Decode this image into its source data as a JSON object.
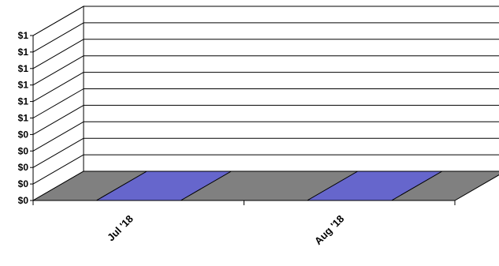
{
  "chart_data": {
    "type": "bar",
    "style": "3d",
    "categories": [
      "Jul '18",
      "Aug '18"
    ],
    "series": [
      {
        "values": [
          0,
          0
        ],
        "color": "#6666cc"
      }
    ],
    "y_tick_labels": [
      "$0",
      "$0",
      "$0",
      "$0",
      "$0",
      "$1",
      "$1",
      "$1",
      "$1",
      "$1",
      "$1"
    ],
    "ylim": [
      0,
      1
    ],
    "grid": true,
    "floor_color": "#808080",
    "wall_color": "#ffffff",
    "legend": "none"
  }
}
